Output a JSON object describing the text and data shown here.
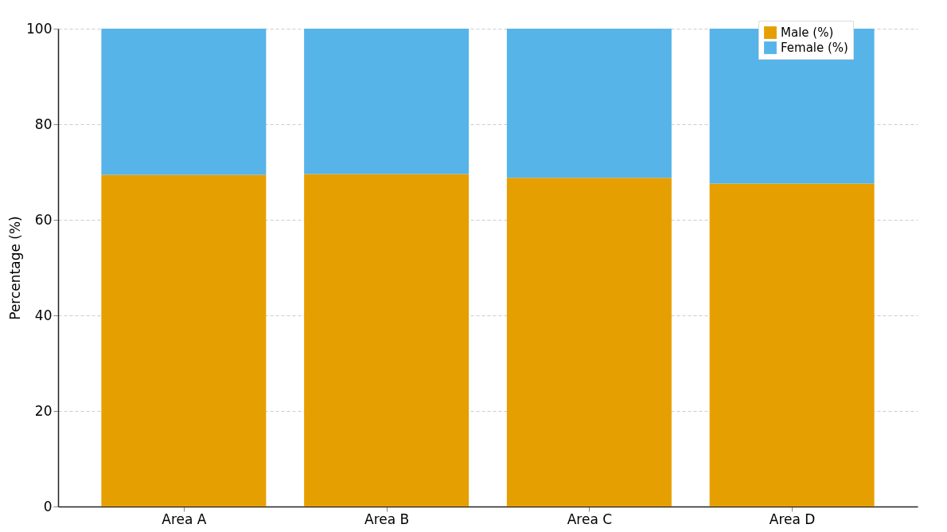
{
  "chart_data": {
    "type": "bar",
    "stacked": true,
    "ylabel": "Percentage (%)",
    "categories": [
      "Area A",
      "Area B",
      "Area C",
      "Area D"
    ],
    "series": [
      {
        "name": "Male (%)",
        "color": "#e69f00",
        "values": [
          69.4,
          69.6,
          68.8,
          67.6
        ]
      },
      {
        "name": "Female (%)",
        "color": "#56b4e9",
        "values": [
          30.6,
          30.4,
          31.2,
          32.4
        ]
      }
    ],
    "ylim": [
      0,
      100
    ],
    "yticks": [
      0,
      20,
      40,
      60,
      80,
      100
    ],
    "grid": true,
    "legend": "top right"
  }
}
